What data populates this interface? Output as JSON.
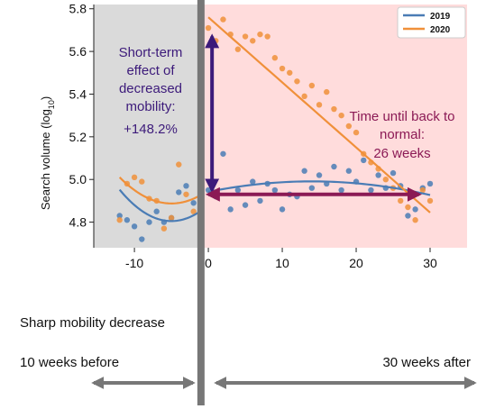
{
  "chart_data": {
    "type": "scatter",
    "xlabel": "",
    "ylabel_main": "Search volume (log",
    "ylabel_sub": "10",
    "ylabel_close": ")",
    "xlim": [
      -15.5,
      35
    ],
    "ylim": [
      4.68,
      5.82
    ],
    "xticks": [
      -10,
      0,
      10,
      20,
      30
    ],
    "xtick_labels": [
      "-10",
      "0",
      "10",
      "20",
      "30"
    ],
    "yticks": [
      4.8,
      5.0,
      5.2,
      5.4,
      5.6,
      5.8
    ],
    "ytick_labels": [
      "4.8",
      "5.0",
      "5.2",
      "5.4",
      "5.6",
      "5.8"
    ],
    "legend_position": "top-right",
    "series": [
      {
        "name": "2019",
        "color": "#4a7cb5",
        "points": [
          {
            "x": -12,
            "y": 4.83
          },
          {
            "x": -11,
            "y": 4.81
          },
          {
            "x": -10,
            "y": 4.78
          },
          {
            "x": -9,
            "y": 4.72
          },
          {
            "x": -8,
            "y": 4.8
          },
          {
            "x": -7,
            "y": 4.85
          },
          {
            "x": -6,
            "y": 4.8
          },
          {
            "x": -5,
            "y": 4.82
          },
          {
            "x": -4,
            "y": 4.94
          },
          {
            "x": -3,
            "y": 4.97
          },
          {
            "x": -2,
            "y": 4.89
          },
          {
            "x": -1,
            "y": 4.88
          },
          {
            "x": 0,
            "y": 4.95
          },
          {
            "x": 1,
            "y": 4.92
          },
          {
            "x": 2,
            "y": 5.12
          },
          {
            "x": 3,
            "y": 4.86
          },
          {
            "x": 4,
            "y": 4.95
          },
          {
            "x": 5,
            "y": 4.88
          },
          {
            "x": 6,
            "y": 4.99
          },
          {
            "x": 7,
            "y": 4.9
          },
          {
            "x": 8,
            "y": 4.98
          },
          {
            "x": 9,
            "y": 4.95
          },
          {
            "x": 10,
            "y": 4.86
          },
          {
            "x": 11,
            "y": 4.93
          },
          {
            "x": 12,
            "y": 4.92
          },
          {
            "x": 13,
            "y": 5.04
          },
          {
            "x": 14,
            "y": 4.96
          },
          {
            "x": 15,
            "y": 5.02
          },
          {
            "x": 16,
            "y": 4.98
          },
          {
            "x": 17,
            "y": 5.06
          },
          {
            "x": 18,
            "y": 4.95
          },
          {
            "x": 19,
            "y": 5.04
          },
          {
            "x": 20,
            "y": 4.99
          },
          {
            "x": 21,
            "y": 5.09
          },
          {
            "x": 22,
            "y": 4.95
          },
          {
            "x": 23,
            "y": 5.02
          },
          {
            "x": 24,
            "y": 4.96
          },
          {
            "x": 25,
            "y": 5.03
          },
          {
            "x": 26,
            "y": 4.97
          },
          {
            "x": 27,
            "y": 4.83
          },
          {
            "x": 28,
            "y": 4.86
          },
          {
            "x": 29,
            "y": 4.96
          },
          {
            "x": 30,
            "y": 4.98
          }
        ],
        "fit_pre": {
          "x": [
            -12,
            -1
          ],
          "coef": [
            0.003,
            0.03,
            4.88
          ]
        },
        "fit_post": {
          "x": [
            0,
            30
          ],
          "coef": [
            -0.00025,
            0.007,
            4.942
          ]
        }
      },
      {
        "name": "2020",
        "color": "#f0903a",
        "points": [
          {
            "x": -12,
            "y": 4.81
          },
          {
            "x": -11,
            "y": 4.98
          },
          {
            "x": -10,
            "y": 5.01
          },
          {
            "x": -9,
            "y": 4.99
          },
          {
            "x": -8,
            "y": 4.91
          },
          {
            "x": -7,
            "y": 4.9
          },
          {
            "x": -6,
            "y": 4.77
          },
          {
            "x": -5,
            "y": 4.82
          },
          {
            "x": -4,
            "y": 5.07
          },
          {
            "x": -3,
            "y": 4.93
          },
          {
            "x": -2,
            "y": 4.85
          },
          {
            "x": -1,
            "y": 4.91
          },
          {
            "x": 0,
            "y": 5.71
          },
          {
            "x": 1,
            "y": 5.65
          },
          {
            "x": 2,
            "y": 5.75
          },
          {
            "x": 3,
            "y": 5.68
          },
          {
            "x": 4,
            "y": 5.61
          },
          {
            "x": 5,
            "y": 5.67
          },
          {
            "x": 6,
            "y": 5.65
          },
          {
            "x": 7,
            "y": 5.68
          },
          {
            "x": 8,
            "y": 5.67
          },
          {
            "x": 9,
            "y": 5.57
          },
          {
            "x": 10,
            "y": 5.52
          },
          {
            "x": 11,
            "y": 5.5
          },
          {
            "x": 12,
            "y": 5.46
          },
          {
            "x": 13,
            "y": 5.39
          },
          {
            "x": 14,
            "y": 5.44
          },
          {
            "x": 15,
            "y": 5.35
          },
          {
            "x": 16,
            "y": 5.41
          },
          {
            "x": 17,
            "y": 5.33
          },
          {
            "x": 18,
            "y": 5.3
          },
          {
            "x": 19,
            "y": 5.25
          },
          {
            "x": 20,
            "y": 5.22
          },
          {
            "x": 21,
            "y": 5.12
          },
          {
            "x": 22,
            "y": 5.08
          },
          {
            "x": 23,
            "y": 5.05
          },
          {
            "x": 24,
            "y": 5.0
          },
          {
            "x": 25,
            "y": 4.96
          },
          {
            "x": 26,
            "y": 4.9
          },
          {
            "x": 27,
            "y": 4.87
          },
          {
            "x": 28,
            "y": 4.81
          },
          {
            "x": 29,
            "y": 4.95
          },
          {
            "x": 30,
            "y": 4.9
          }
        ],
        "fit_pre": {
          "x": [
            -12,
            -1
          ],
          "coef": [
            0.0025,
            0.025,
            4.95
          ]
        },
        "fit_post": {
          "x": [
            0,
            30
          ],
          "coef": [
            0,
            -0.0305,
            5.76
          ]
        }
      }
    ],
    "regions": [
      {
        "x": [
          -15.5,
          -1
        ],
        "color": "#dadada"
      },
      {
        "x": [
          -1,
          35
        ],
        "color": "#ffdcdc"
      }
    ],
    "divider": {
      "x": -1,
      "color": "#777777"
    },
    "annotations": {
      "left_lines": [
        "Short-term",
        "effect of",
        "decreased",
        "mobility:",
        "+148.2%"
      ],
      "left_color": "#3c1a7a",
      "vertical_arrow": {
        "x": 0.5,
        "y_from": 4.95,
        "y_to": 5.67
      },
      "right_lines": [
        "Time until back to",
        "normal:",
        "26 weeks"
      ],
      "right_color": "#8b1a55",
      "horizontal_arrow": {
        "y": 4.93,
        "x_from": 0,
        "x_to": 28.5
      }
    },
    "bottom": {
      "event_label": "Sharp mobility decrease",
      "before_label": "10 weeks before",
      "after_label": "30 weeks after",
      "arrow_color": "#777777"
    }
  }
}
